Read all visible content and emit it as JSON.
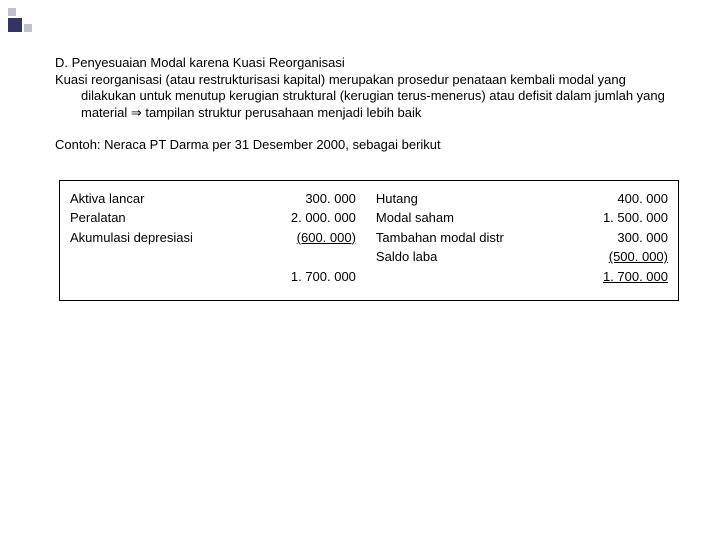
{
  "decoration": {
    "big_color": "#333366",
    "small_color": "#c0c0d0"
  },
  "heading": "D. Penyesuaian Modal karena Kuasi Reorganisasi",
  "paragraph": "Kuasi reorganisasi (atau restrukturisasi kapital) merupakan prosedur penataan kembali modal yang dilakukan untuk menutup kerugian struktural (kerugian terus-menerus) atau defisit dalam jumlah yang material ⇒ tampilan struktur perusahaan menjadi lebih baik",
  "example": "Contoh: Neraca PT Darma per 31 Desember 2000, sebagai berikut",
  "balance": {
    "left": {
      "rows": [
        {
          "label": "Aktiva lancar",
          "value": "300. 000"
        },
        {
          "label": "Peralatan",
          "value": "2. 000. 000"
        },
        {
          "label": "Akumulasi depresiasi",
          "value": "(600. 000)",
          "underline": true
        }
      ],
      "total": "1. 700. 000"
    },
    "right": {
      "rows": [
        {
          "label": "Hutang",
          "value": "400. 000"
        },
        {
          "label": "Modal saham",
          "value": "1. 500. 000"
        },
        {
          "label": "Tambahan modal distr",
          "value": "300. 000"
        },
        {
          "label": "Saldo laba",
          "value": "(500. 000)",
          "underline": true
        }
      ],
      "total": "1. 700. 000"
    }
  }
}
